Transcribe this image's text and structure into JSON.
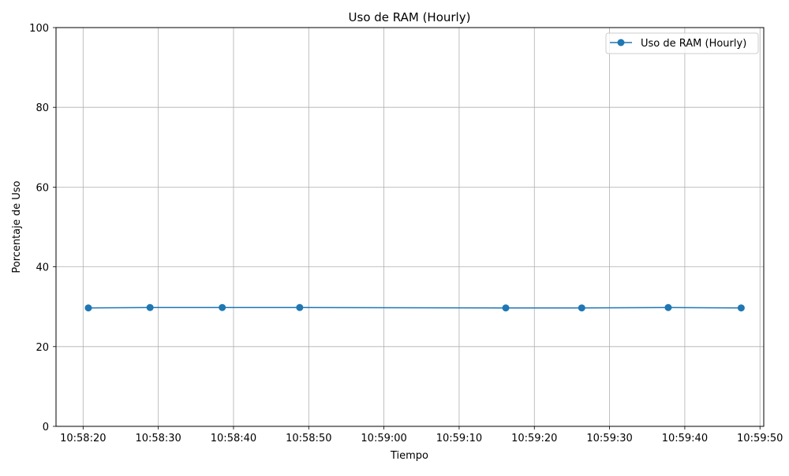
{
  "chart_data": {
    "type": "line",
    "title": "Uso de RAM (Hourly)",
    "xlabel": "Tiempo",
    "ylabel": "Porcentaje de Uso",
    "x_type": "time",
    "x_ticks": [
      "10:58:20",
      "10:58:30",
      "10:58:40",
      "10:58:50",
      "10:59:00",
      "10:59:10",
      "10:59:20",
      "10:59:30",
      "10:59:40",
      "10:59:50"
    ],
    "y_ticks": [
      "0",
      "20",
      "40",
      "60",
      "80",
      "100"
    ],
    "xlim": [
      "10:58:16.4",
      "10:59:50.5"
    ],
    "ylim": [
      0,
      100
    ],
    "grid": true,
    "legend": {
      "position": "top-right"
    },
    "series": [
      {
        "name": "Uso de RAM (Hourly)",
        "color": "#1f77b4",
        "marker": "circle",
        "x": [
          "10:58:20.7",
          "10:58:28.9",
          "10:58:38.5",
          "10:58:48.8",
          "10:59:16.2",
          "10:59:26.3",
          "10:59:37.8",
          "10:59:47.5"
        ],
        "values": [
          29.7,
          29.8,
          29.8,
          29.8,
          29.7,
          29.7,
          29.8,
          29.7
        ]
      }
    ]
  }
}
